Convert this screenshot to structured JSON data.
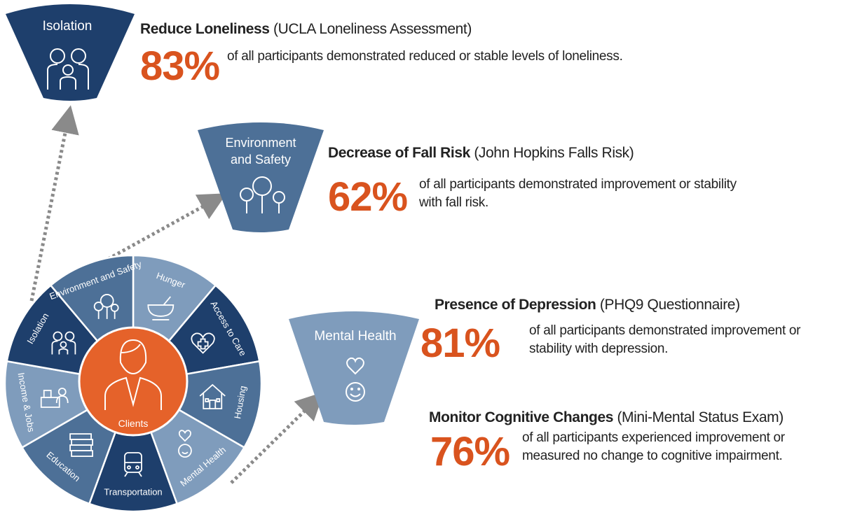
{
  "colors": {
    "dark": "#1e3f6c",
    "medium": "#4d7097",
    "light": "#7f9cbc",
    "orange": "#e5622a",
    "accent_text": "#d9531e",
    "arrow": "#8a8a8a"
  },
  "wheel": {
    "center_label": "Clients",
    "center_icon": "person-icon",
    "segments": [
      {
        "label": "Hunger",
        "icon": "bowl-icon",
        "shade": "light"
      },
      {
        "label": "Access to Care",
        "icon": "heart-cross-icon",
        "shade": "dark"
      },
      {
        "label": "Housing",
        "icon": "house-icon",
        "shade": "medium"
      },
      {
        "label": "Mental Health",
        "icon": "heart-smile-icon",
        "shade": "light"
      },
      {
        "label": "Transportation",
        "icon": "train-icon",
        "shade": "dark"
      },
      {
        "label": "Education",
        "icon": "books-icon",
        "shade": "medium"
      },
      {
        "label": "Income & Jobs",
        "icon": "cashier-icon",
        "shade": "light"
      },
      {
        "label": "Isolation",
        "icon": "family-icon",
        "shade": "dark"
      },
      {
        "label": "Environment and Safety",
        "icon": "trees-icon",
        "shade": "medium"
      }
    ]
  },
  "callouts": [
    {
      "label": "Isolation",
      "icon": "family-icon",
      "shade": "dark"
    },
    {
      "label_lines": [
        "Environment",
        "and Safety"
      ],
      "icon": "trees-icon",
      "shade": "medium"
    },
    {
      "label": "Mental Health",
      "icon": "heart-smile-icon",
      "shade": "light"
    }
  ],
  "outcomes": [
    {
      "title": "Reduce Loneliness",
      "source": "(UCLA Loneliness Assessment)",
      "percent": "83%",
      "desc": [
        "of all participants demonstrated reduced or stable levels of loneliness."
      ]
    },
    {
      "title": "Decrease of Fall Risk",
      "source": "(John Hopkins Falls Risk)",
      "percent": "62%",
      "desc": [
        "of all participants demonstrated improvement or stability",
        "with fall risk."
      ]
    },
    {
      "title": "Presence of Depression",
      "source": "(PHQ9 Questionnaire)",
      "percent": "81%",
      "desc": [
        "of all participants demonstrated improvement or",
        "stability with depression."
      ]
    },
    {
      "title": "Monitor Cognitive Changes",
      "source": "(Mini-Mental Status Exam)",
      "percent": "76%",
      "desc": [
        "of all participants experienced improvement or",
        "measured no change to cognitive impairment."
      ]
    }
  ]
}
